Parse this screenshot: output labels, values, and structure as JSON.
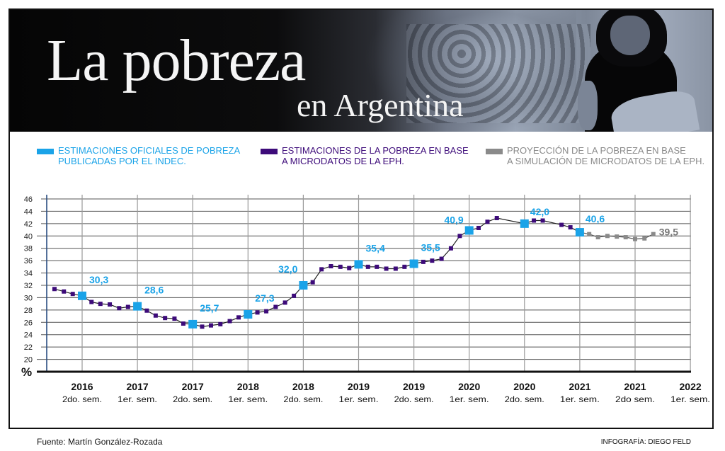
{
  "header": {
    "title": "La pobreza",
    "subtitle": "en Argentina"
  },
  "legend": [
    {
      "label": "ESTIMACIONES OFICIALES DE POBREZA\nPUBLICADAS POR EL INDEC.",
      "color": "#1aa3e8"
    },
    {
      "label": "ESTIMACIONES DE LA POBREZA EN BASE\nA MICRODATOS DE LA EPH.",
      "color": "#3d0b7a"
    },
    {
      "label": "PROYECCIÓN DE LA POBREZA EN BASE\nA SIMULACIÓN DE MICRODATOS DE LA EPH.",
      "color": "#8a8a8a"
    }
  ],
  "footer": {
    "source": "Fuente: Martín González-Rozada",
    "credit": "INFOGRAFÍA: DIEGO FELD"
  },
  "chart_data": {
    "type": "line",
    "title": "La pobreza en Argentina",
    "ylabel": "%",
    "ylim": [
      18,
      46
    ],
    "yticks": [
      20,
      22,
      24,
      26,
      28,
      30,
      32,
      34,
      36,
      38,
      40,
      42,
      44,
      46
    ],
    "grid": true,
    "legend_position": "top",
    "x_unit": "semester index (0 = 2016 2do. sem., 11 = 2022 1er. sem.)",
    "xlim": [
      -0.65,
      11
    ],
    "categories": [
      {
        "year": "2016",
        "sem": "2do. sem."
      },
      {
        "year": "2017",
        "sem": "1er. sem."
      },
      {
        "year": "2017",
        "sem": "2do. sem."
      },
      {
        "year": "2018",
        "sem": "1er. sem."
      },
      {
        "year": "2018",
        "sem": "2do. sem."
      },
      {
        "year": "2019",
        "sem": "1er. sem."
      },
      {
        "year": "2019",
        "sem": "2do. sem."
      },
      {
        "year": "2020",
        "sem": "1er. sem."
      },
      {
        "year": "2020",
        "sem": "2do. sem."
      },
      {
        "year": "2021",
        "sem": "1er. sem."
      },
      {
        "year": "2021",
        "sem": "2do sem."
      },
      {
        "year": "2022",
        "sem": "1er. sem."
      }
    ],
    "series": [
      {
        "name": "ESTIMACIONES DE LA POBREZA EN BASE A MICRODATOS DE LA EPH.",
        "color": "#3d0b7a",
        "points": [
          [
            -0.5,
            31.4
          ],
          [
            -0.33,
            31.0
          ],
          [
            -0.17,
            30.6
          ],
          [
            0,
            30.3
          ],
          [
            0.17,
            29.3
          ],
          [
            0.33,
            29.0
          ],
          [
            0.5,
            28.9
          ],
          [
            0.67,
            28.3
          ],
          [
            0.83,
            28.5
          ],
          [
            1,
            28.6
          ],
          [
            1.17,
            27.9
          ],
          [
            1.33,
            27.1
          ],
          [
            1.5,
            26.7
          ],
          [
            1.67,
            26.6
          ],
          [
            1.83,
            25.8
          ],
          [
            2,
            25.7
          ],
          [
            2.17,
            25.3
          ],
          [
            2.33,
            25.5
          ],
          [
            2.5,
            25.7
          ],
          [
            2.67,
            26.2
          ],
          [
            2.83,
            26.8
          ],
          [
            3,
            27.3
          ],
          [
            3.17,
            27.6
          ],
          [
            3.33,
            27.8
          ],
          [
            3.5,
            28.5
          ],
          [
            3.67,
            29.2
          ],
          [
            3.83,
            30.3
          ],
          [
            4,
            32.0
          ],
          [
            4.17,
            32.5
          ],
          [
            4.33,
            34.6
          ],
          [
            4.5,
            35.1
          ],
          [
            4.67,
            35.0
          ],
          [
            4.83,
            34.8
          ],
          [
            5,
            35.4
          ],
          [
            5.17,
            35.0
          ],
          [
            5.33,
            35.0
          ],
          [
            5.5,
            34.7
          ],
          [
            5.67,
            34.7
          ],
          [
            5.83,
            35.0
          ],
          [
            6,
            35.5
          ],
          [
            6.17,
            35.8
          ],
          [
            6.33,
            36.0
          ],
          [
            6.5,
            36.3
          ],
          [
            6.67,
            38.0
          ],
          [
            6.83,
            40.0
          ],
          [
            7,
            40.9
          ],
          [
            7.17,
            41.3
          ],
          [
            7.33,
            42.3
          ],
          [
            7.5,
            42.9
          ],
          [
            8,
            42.0
          ],
          [
            8.17,
            42.5
          ],
          [
            8.33,
            42.5
          ],
          [
            8.67,
            41.8
          ],
          [
            8.83,
            41.4
          ],
          [
            9,
            40.6
          ]
        ]
      },
      {
        "name": "PROYECCIÓN DE LA POBREZA EN BASE A SIMULACIÓN DE MICRODATOS DE LA EPH.",
        "color": "#8a8a8a",
        "points": [
          [
            9,
            40.6
          ],
          [
            9.17,
            40.3
          ],
          [
            9.33,
            39.8
          ],
          [
            9.5,
            40.0
          ],
          [
            9.67,
            39.9
          ],
          [
            9.83,
            39.8
          ],
          [
            10,
            39.5
          ],
          [
            10.17,
            39.6
          ],
          [
            10.33,
            40.3
          ]
        ],
        "end_label": "39,5"
      },
      {
        "name": "ESTIMACIONES OFICIALES DE POBREZA PUBLICADAS POR EL INDEC.",
        "color": "#1aa3e8",
        "points": [
          [
            0,
            30.3
          ],
          [
            1,
            28.6
          ],
          [
            2,
            25.7
          ],
          [
            3,
            27.3
          ],
          [
            4,
            32.0
          ],
          [
            5,
            35.4
          ],
          [
            6,
            35.5
          ],
          [
            7,
            40.9
          ],
          [
            8,
            42.0
          ],
          [
            9,
            40.6
          ]
        ],
        "labels": [
          "30,3",
          "28,6",
          "25,7",
          "27,3",
          "32,0",
          "35,4",
          "35,5",
          "40,9",
          "42,0",
          "40,6"
        ]
      }
    ]
  }
}
